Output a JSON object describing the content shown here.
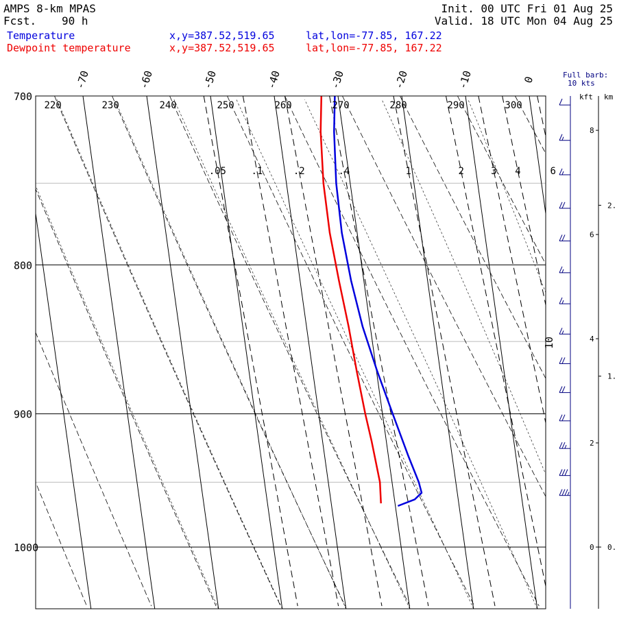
{
  "header": {
    "model": "AMPS 8-km MPAS",
    "fcst_label": "Fcst.",
    "fcst_value": "90 h",
    "init": "Init. 00 UTC Fri 01 Aug 25",
    "valid": "Valid. 18 UTC Mon 04 Aug 25"
  },
  "legend": [
    {
      "name": "Temperature",
      "xy": "x,y=387.52,519.65",
      "latlon": "lat,lon=-77.85, 167.22",
      "color": "#0000dd"
    },
    {
      "name": "Dewpoint temperature",
      "xy": "x,y=387.52,519.65",
      "latlon": "lat,lon=-77.85, 167.22",
      "color": "#ee0000"
    }
  ],
  "barb_legend": {
    "line1": "Full barb:",
    "line2": "10 kts"
  },
  "height_axis": {
    "kft_label": "kft",
    "km_label": "km",
    "kft_ticks": [
      {
        "value": 8,
        "label": "8"
      },
      {
        "value": 6,
        "label": "6"
      },
      {
        "value": 4,
        "label": "4"
      },
      {
        "value": 2,
        "label": "2"
      },
      {
        "value": 0,
        "label": "0"
      }
    ],
    "km_ticks": [
      {
        "value": 2,
        "label": "2."
      },
      {
        "value": 1,
        "label": "1."
      },
      {
        "value": 0,
        "label": "0."
      }
    ]
  },
  "chart_data": {
    "type": "line",
    "y_axis": {
      "scale": "log",
      "range": [
        1040,
        700
      ],
      "ticks": [
        700,
        800,
        900,
        1000
      ],
      "minor_ticks": [
        750,
        850,
        950
      ]
    },
    "isotherms": {
      "values": [
        -70,
        -60,
        -50,
        -40,
        -30,
        -20,
        -10,
        0
      ],
      "labels": [
        "-70",
        "-60",
        "-50",
        "-40",
        "-30",
        "-20",
        "-10",
        "0"
      ]
    },
    "dry_adiabats": {
      "values": [
        220,
        230,
        240,
        250,
        260,
        270,
        280,
        290,
        300
      ],
      "labels": [
        "220",
        "230",
        "240",
        "250",
        "260",
        "270",
        "280",
        "290",
        "300"
      ]
    },
    "mixing_ratio": {
      "values": [
        0.05,
        0.1,
        0.2,
        0.4,
        1,
        2,
        3,
        4,
        6
      ],
      "labels": [
        ".05",
        ".1",
        ".2",
        ".4",
        "1",
        "2",
        "3",
        "4",
        "6"
      ]
    },
    "side_label": "10",
    "series": [
      {
        "name": "Temperature",
        "color": "#0000dd",
        "points": [
          {
            "p": 968,
            "t": -29.6
          },
          {
            "p": 963,
            "t": -26.8
          },
          {
            "p": 958,
            "t": -25.6
          },
          {
            "p": 950,
            "t": -25.8
          },
          {
            "p": 930,
            "t": -26.9
          },
          {
            "p": 900,
            "t": -28.4
          },
          {
            "p": 870,
            "t": -29.9
          },
          {
            "p": 840,
            "t": -31.2
          },
          {
            "p": 810,
            "t": -32.0
          },
          {
            "p": 780,
            "t": -32.4
          },
          {
            "p": 750,
            "t": -32.2
          },
          {
            "p": 720,
            "t": -31.4
          },
          {
            "p": 700,
            "t": -30.5
          }
        ]
      },
      {
        "name": "Dewpoint temperature",
        "color": "#ee0000",
        "points": [
          {
            "p": 966,
            "t": -32.2
          },
          {
            "p": 950,
            "t": -31.9
          },
          {
            "p": 920,
            "t": -32.3
          },
          {
            "p": 900,
            "t": -32.7
          },
          {
            "p": 870,
            "t": -33.1
          },
          {
            "p": 840,
            "t": -33.4
          },
          {
            "p": 810,
            "t": -33.9
          },
          {
            "p": 780,
            "t": -34.3
          },
          {
            "p": 750,
            "t": -34.2
          },
          {
            "p": 720,
            "t": -33.5
          },
          {
            "p": 700,
            "t": -32.6
          }
        ]
      }
    ],
    "wind_barbs": [
      {
        "p": 705,
        "speed": 10
      },
      {
        "p": 725,
        "speed": 15
      },
      {
        "p": 745,
        "speed": 15
      },
      {
        "p": 765,
        "speed": 20
      },
      {
        "p": 785,
        "speed": 20
      },
      {
        "p": 805,
        "speed": 15
      },
      {
        "p": 825,
        "speed": 15
      },
      {
        "p": 845,
        "speed": 15
      },
      {
        "p": 865,
        "speed": 20
      },
      {
        "p": 885,
        "speed": 20
      },
      {
        "p": 905,
        "speed": 20
      },
      {
        "p": 925,
        "speed": 25
      },
      {
        "p": 945,
        "speed": 30
      },
      {
        "p": 960,
        "speed": 35
      }
    ]
  }
}
